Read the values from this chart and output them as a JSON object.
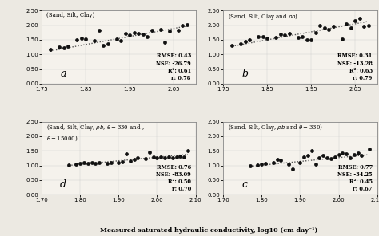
{
  "panel_a": {
    "title": "(Sand, Silt, Clay)",
    "label": "a",
    "xlim": [
      1.75,
      2.1
    ],
    "ylim": [
      0.0,
      2.5
    ],
    "xticks": [
      1.75,
      1.85,
      1.95,
      2.05
    ],
    "yticks": [
      0.0,
      0.5,
      1.0,
      1.5,
      2.0,
      2.5
    ],
    "scatter_x": [
      1.77,
      1.79,
      1.8,
      1.81,
      1.83,
      1.84,
      1.85,
      1.87,
      1.88,
      1.89,
      1.9,
      1.92,
      1.93,
      1.94,
      1.95,
      1.96,
      1.97,
      1.98,
      1.99,
      2.0,
      2.02,
      2.03,
      2.04,
      2.06,
      2.07,
      2.08
    ],
    "scatter_y": [
      1.18,
      1.25,
      1.22,
      1.27,
      1.5,
      1.55,
      1.52,
      1.48,
      1.82,
      1.3,
      1.35,
      1.53,
      1.47,
      1.73,
      1.65,
      1.75,
      1.72,
      1.68,
      1.6,
      1.82,
      1.85,
      1.42,
      1.8,
      1.83,
      2.0,
      2.02
    ],
    "trendline_x": [
      1.77,
      2.08
    ],
    "trendline_y": [
      1.12,
      1.97
    ],
    "stats": "RMSE: 0.43\nNSE: -26.79\nR²: 0.61\nr: 0.78"
  },
  "panel_b": {
    "title": "(Sand, Silt, Clay and $\\rho b$)",
    "label": "b",
    "xlim": [
      1.75,
      2.1
    ],
    "ylim": [
      0.0,
      2.5
    ],
    "xticks": [
      1.75,
      1.85,
      1.95,
      2.05
    ],
    "yticks": [
      0.0,
      0.5,
      1.0,
      1.5,
      2.0,
      2.5
    ],
    "scatter_x": [
      1.77,
      1.79,
      1.8,
      1.81,
      1.83,
      1.84,
      1.85,
      1.87,
      1.88,
      1.89,
      1.9,
      1.92,
      1.93,
      1.94,
      1.95,
      1.96,
      1.97,
      1.98,
      1.99,
      2.0,
      2.02,
      2.03,
      2.04,
      2.05,
      2.06,
      2.07,
      2.08
    ],
    "scatter_y": [
      1.3,
      1.35,
      1.45,
      1.5,
      1.6,
      1.62,
      1.55,
      1.58,
      1.68,
      1.65,
      1.72,
      1.57,
      1.6,
      1.5,
      1.5,
      1.75,
      2.0,
      1.9,
      1.85,
      1.95,
      1.53,
      2.05,
      1.9,
      2.15,
      2.23,
      1.97,
      2.0
    ],
    "trendline_x": [
      1.77,
      2.08
    ],
    "trendline_y": [
      1.28,
      2.13
    ],
    "stats": "RMSE: 0.31\nNSE: -13.28\nR²: 0.63\nr: 0.79"
  },
  "panel_d": {
    "title": "(Sand, Silt, Clay, $\\rho b$, $\\theta-$330 and ,\n$\\theta-$15000)",
    "label": "d",
    "xlim": [
      1.7,
      2.1
    ],
    "ylim": [
      0.0,
      2.5
    ],
    "xticks": [
      1.7,
      1.8,
      1.9,
      2.0,
      2.1
    ],
    "yticks": [
      0.0,
      0.5,
      1.0,
      1.5,
      2.0,
      2.5
    ],
    "scatter_x": [
      1.77,
      1.79,
      1.8,
      1.81,
      1.82,
      1.83,
      1.84,
      1.85,
      1.87,
      1.88,
      1.9,
      1.91,
      1.92,
      1.93,
      1.94,
      1.95,
      1.97,
      1.98,
      1.99,
      2.0,
      2.01,
      2.02,
      2.03,
      2.04,
      2.05,
      2.06,
      2.07,
      2.08
    ],
    "scatter_y": [
      1.02,
      1.05,
      1.08,
      1.1,
      1.08,
      1.1,
      1.08,
      1.1,
      1.08,
      1.1,
      1.1,
      1.12,
      1.4,
      1.15,
      1.2,
      1.25,
      1.22,
      1.45,
      1.28,
      1.25,
      1.28,
      1.25,
      1.28,
      1.27,
      1.3,
      1.32,
      1.28,
      1.5
    ],
    "trendline_x": [
      1.77,
      2.08
    ],
    "trendline_y": [
      1.0,
      1.38
    ],
    "stats": "RMSE: 0.76\nNSE: -83.09\nR²: 0.50\nr: 0.70"
  },
  "panel_c": {
    "title": "(Sand, Silt, Clay, $\\rho b$ and $\\theta-$330)",
    "label": "c",
    "xlim": [
      1.7,
      2.1
    ],
    "ylim": [
      0.0,
      2.5
    ],
    "xticks": [
      1.7,
      1.8,
      1.9,
      2.0,
      2.1
    ],
    "yticks": [
      0.0,
      0.5,
      1.0,
      1.5,
      2.0,
      2.5
    ],
    "scatter_x": [
      1.77,
      1.79,
      1.8,
      1.81,
      1.83,
      1.84,
      1.85,
      1.87,
      1.88,
      1.9,
      1.91,
      1.92,
      1.93,
      1.94,
      1.95,
      1.96,
      1.97,
      1.98,
      1.99,
      2.0,
      2.01,
      2.02,
      2.03,
      2.04,
      2.05,
      2.06,
      2.08
    ],
    "scatter_y": [
      1.0,
      1.02,
      1.05,
      1.08,
      1.1,
      1.2,
      1.18,
      1.05,
      0.88,
      1.1,
      1.3,
      1.35,
      1.5,
      1.03,
      1.25,
      1.35,
      1.25,
      1.22,
      1.3,
      1.38,
      1.42,
      1.4,
      1.25,
      1.38,
      1.42,
      1.35,
      1.57
    ],
    "trendline_x": [
      1.77,
      2.08
    ],
    "trendline_y": [
      0.97,
      1.37
    ],
    "stats": "RMSE: 0.77\nNSE: -34.25\nR²: 0.45\nr: 0.67"
  },
  "xlabel": "Measured saturated hydraulic conductivity, log10 (cm day⁻¹)",
  "bg_color": "#ece9e2",
  "plot_bg": "#f5f2ec",
  "scatter_color": "#111111",
  "line_color": "#555555"
}
